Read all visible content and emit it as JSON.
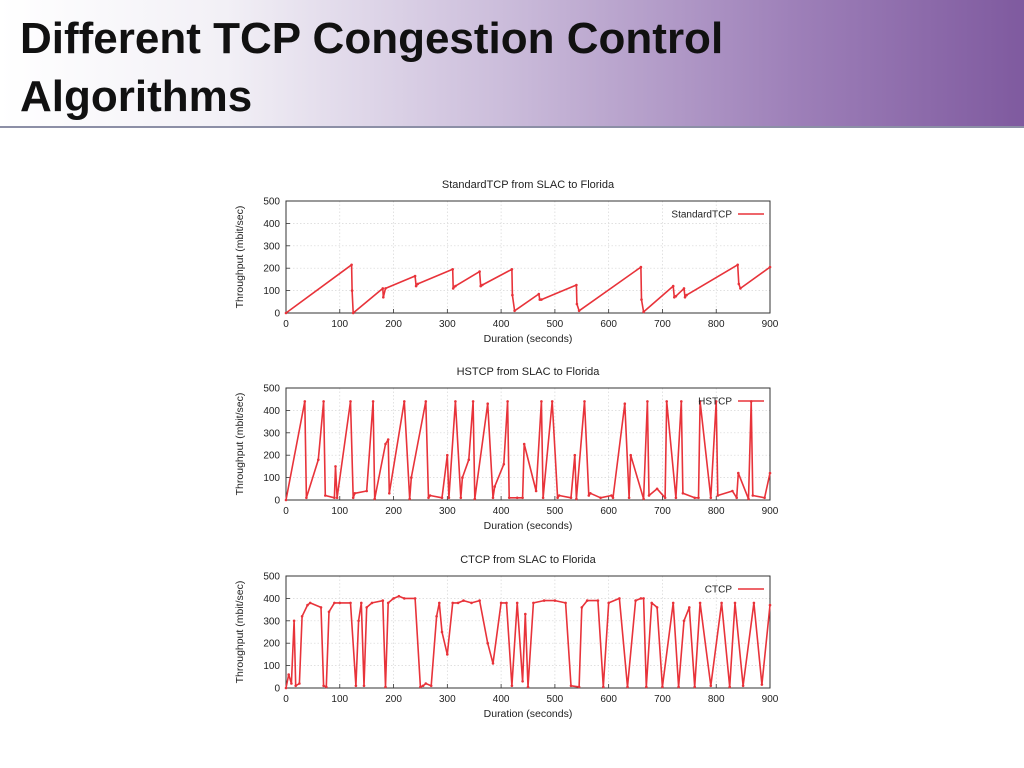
{
  "slide": {
    "title_line1": "Different TCP Congestion Control",
    "title_line2": "Algorithms"
  },
  "chart_data": [
    {
      "type": "line",
      "title": "StandardTCP from SLAC to Florida",
      "xlabel": "Duration (seconds)",
      "ylabel": "Throughput (mbit/sec)",
      "xlim": [
        0,
        900
      ],
      "ylim": [
        0,
        500
      ],
      "xticks": [
        0,
        100,
        200,
        300,
        400,
        500,
        600,
        700,
        800,
        900
      ],
      "yticks": [
        0,
        100,
        200,
        300,
        400,
        500
      ],
      "grid": true,
      "legend_position": "top-right",
      "color": "#e8333a",
      "series": [
        {
          "name": "StandardTCP",
          "x": [
            0,
            122,
            123,
            125,
            180,
            181,
            185,
            240,
            242,
            245,
            310,
            311,
            315,
            360,
            362,
            365,
            420,
            421,
            425,
            470,
            472,
            475,
            540,
            541,
            545,
            660,
            661,
            665,
            720,
            722,
            725,
            740,
            742,
            745,
            840,
            842,
            845,
            900
          ],
          "y": [
            0,
            215,
            100,
            0,
            110,
            70,
            110,
            165,
            120,
            130,
            195,
            110,
            120,
            185,
            120,
            125,
            195,
            80,
            10,
            85,
            60,
            60,
            125,
            40,
            10,
            205,
            60,
            5,
            120,
            70,
            75,
            110,
            70,
            80,
            215,
            130,
            110,
            205
          ]
        }
      ]
    },
    {
      "type": "line",
      "title": "HSTCP from SLAC to Florida",
      "xlabel": "Duration (seconds)",
      "ylabel": "Throughput (mbit/sec)",
      "xlim": [
        0,
        900
      ],
      "ylim": [
        0,
        500
      ],
      "xticks": [
        0,
        100,
        200,
        300,
        400,
        500,
        600,
        700,
        800,
        900
      ],
      "yticks": [
        0,
        100,
        200,
        300,
        400,
        500
      ],
      "grid": true,
      "legend_position": "top-right",
      "color": "#e8333a",
      "series": [
        {
          "name": "HSTCP",
          "x": [
            0,
            35,
            38,
            60,
            70,
            73,
            90,
            92,
            95,
            120,
            125,
            128,
            150,
            162,
            165,
            185,
            190,
            192,
            220,
            230,
            233,
            260,
            265,
            268,
            290,
            300,
            303,
            315,
            325,
            328,
            340,
            348,
            351,
            375,
            385,
            388,
            405,
            412,
            415,
            430,
            440,
            443,
            465,
            475,
            478,
            495,
            505,
            508,
            530,
            537,
            540,
            555,
            563,
            566,
            585,
            605,
            608,
            630,
            638,
            641,
            665,
            672,
            675,
            690,
            705,
            708,
            725,
            735,
            738,
            760,
            767,
            770,
            790,
            800,
            803,
            830,
            838,
            841,
            860,
            865,
            868,
            890,
            900
          ],
          "y": [
            0,
            440,
            10,
            180,
            440,
            20,
            10,
            150,
            10,
            440,
            10,
            30,
            40,
            440,
            5,
            250,
            270,
            30,
            440,
            5,
            100,
            440,
            10,
            20,
            10,
            200,
            10,
            440,
            10,
            100,
            180,
            440,
            5,
            430,
            10,
            60,
            160,
            440,
            10,
            10,
            10,
            250,
            40,
            440,
            10,
            440,
            10,
            20,
            10,
            200,
            5,
            440,
            20,
            30,
            10,
            20,
            10,
            430,
            10,
            200,
            5,
            440,
            20,
            50,
            10,
            440,
            10,
            440,
            30,
            10,
            10,
            440,
            10,
            440,
            20,
            40,
            10,
            120,
            5,
            440,
            20,
            10,
            120
          ]
        }
      ]
    },
    {
      "type": "line",
      "title": "CTCP from SLAC to Florida",
      "xlabel": "Duration (seconds)",
      "ylabel": "Throughput (mbit/sec)",
      "xlim": [
        0,
        900
      ],
      "ylim": [
        0,
        500
      ],
      "xticks": [
        0,
        100,
        200,
        300,
        400,
        500,
        600,
        700,
        800,
        900
      ],
      "yticks": [
        0,
        100,
        200,
        300,
        400,
        500
      ],
      "grid": true,
      "legend_position": "top-right",
      "color": "#e8333a",
      "series": [
        {
          "name": "CTCP",
          "x": [
            0,
            5,
            10,
            15,
            18,
            25,
            30,
            40,
            45,
            65,
            70,
            75,
            80,
            90,
            100,
            120,
            130,
            135,
            140,
            145,
            150,
            160,
            180,
            185,
            190,
            200,
            210,
            220,
            240,
            250,
            255,
            260,
            270,
            280,
            285,
            290,
            300,
            310,
            320,
            330,
            345,
            360,
            375,
            385,
            400,
            410,
            420,
            430,
            440,
            445,
            450,
            460,
            480,
            500,
            520,
            530,
            545,
            550,
            560,
            580,
            590,
            600,
            620,
            635,
            650,
            660,
            665,
            670,
            680,
            690,
            700,
            720,
            730,
            740,
            750,
            760,
            770,
            790,
            810,
            825,
            835,
            850,
            870,
            885,
            900
          ],
          "y": [
            0,
            60,
            20,
            300,
            10,
            20,
            320,
            370,
            380,
            360,
            10,
            5,
            340,
            380,
            380,
            380,
            10,
            300,
            380,
            10,
            360,
            380,
            390,
            5,
            380,
            400,
            410,
            400,
            400,
            5,
            10,
            20,
            10,
            320,
            380,
            250,
            150,
            380,
            380,
            390,
            380,
            390,
            200,
            110,
            380,
            380,
            10,
            380,
            30,
            330,
            5,
            380,
            390,
            390,
            380,
            10,
            5,
            360,
            390,
            390,
            5,
            380,
            400,
            5,
            390,
            400,
            400,
            5,
            380,
            360,
            5,
            380,
            5,
            300,
            360,
            5,
            380,
            10,
            380,
            5,
            380,
            10,
            380,
            15,
            370
          ]
        }
      ]
    }
  ]
}
